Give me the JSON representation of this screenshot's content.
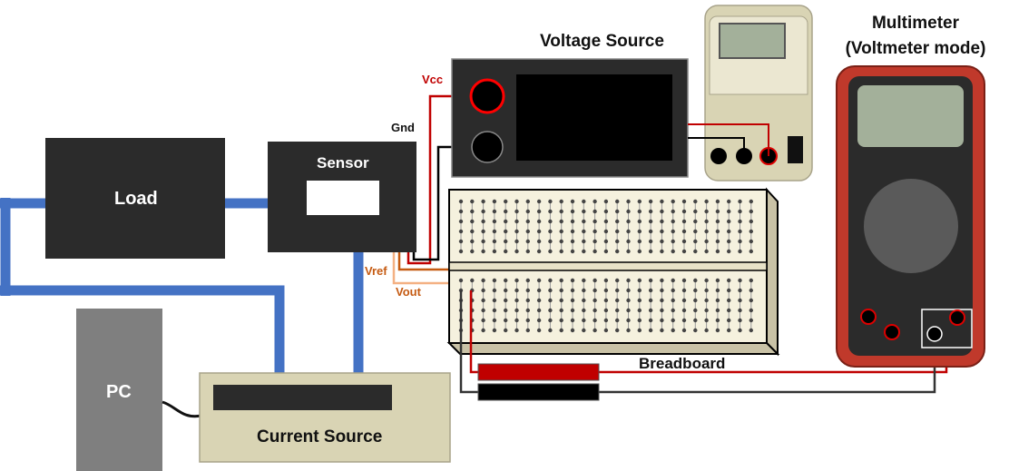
{
  "labels": {
    "load": "Load",
    "sensor": "Sensor",
    "pc": "PC",
    "current_source": "Current Source",
    "voltage_source": "Voltage Source",
    "multimeter_line1": "Multimeter",
    "multimeter_line2": "(Voltmeter mode)",
    "breadboard": "Breadboard",
    "vcc": "Vcc",
    "gnd": "Gnd",
    "vref": "Vref",
    "vout": "Vout"
  },
  "colors": {
    "current_loop": "#4472c4",
    "device_dark": "#2b2b2b",
    "pc_gray": "#7f7f7f",
    "current_source_beige": "#d9d4b4",
    "vcc_wire": "#c00000",
    "gnd_wire": "#000000",
    "vref_wire": "#c55a11",
    "vout_wire": "#f4b183",
    "multimeter_case": "#c0392b"
  }
}
